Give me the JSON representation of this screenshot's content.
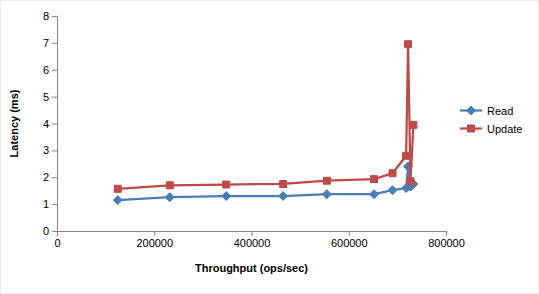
{
  "chart_data": {
    "type": "line",
    "x_label": "Throughput (ops/sec)",
    "y_label": "Latency (ms)",
    "x": [
      125000,
      232000,
      348000,
      465000,
      555000,
      652000,
      690000,
      718000,
      722000,
      727000,
      733000
    ],
    "series": [
      {
        "name": "Read",
        "color": "#4a7ebb",
        "marker": "diamond",
        "values": [
          1.15,
          1.26,
          1.3,
          1.3,
          1.37,
          1.37,
          1.52,
          1.6,
          2.4,
          1.65,
          1.75
        ]
      },
      {
        "name": "Update",
        "color": "#be4b48",
        "marker": "square",
        "values": [
          1.57,
          1.7,
          1.73,
          1.75,
          1.87,
          1.93,
          2.15,
          2.8,
          6.95,
          1.85,
          3.95
        ]
      }
    ],
    "xlim": [
      0,
      800000
    ],
    "xticks": [
      0,
      200000,
      400000,
      600000,
      800000
    ],
    "ylim": [
      0,
      8
    ],
    "yticks": [
      0,
      1,
      2,
      3,
      4,
      5,
      6,
      7,
      8
    ],
    "grid": false,
    "legend": "right"
  }
}
